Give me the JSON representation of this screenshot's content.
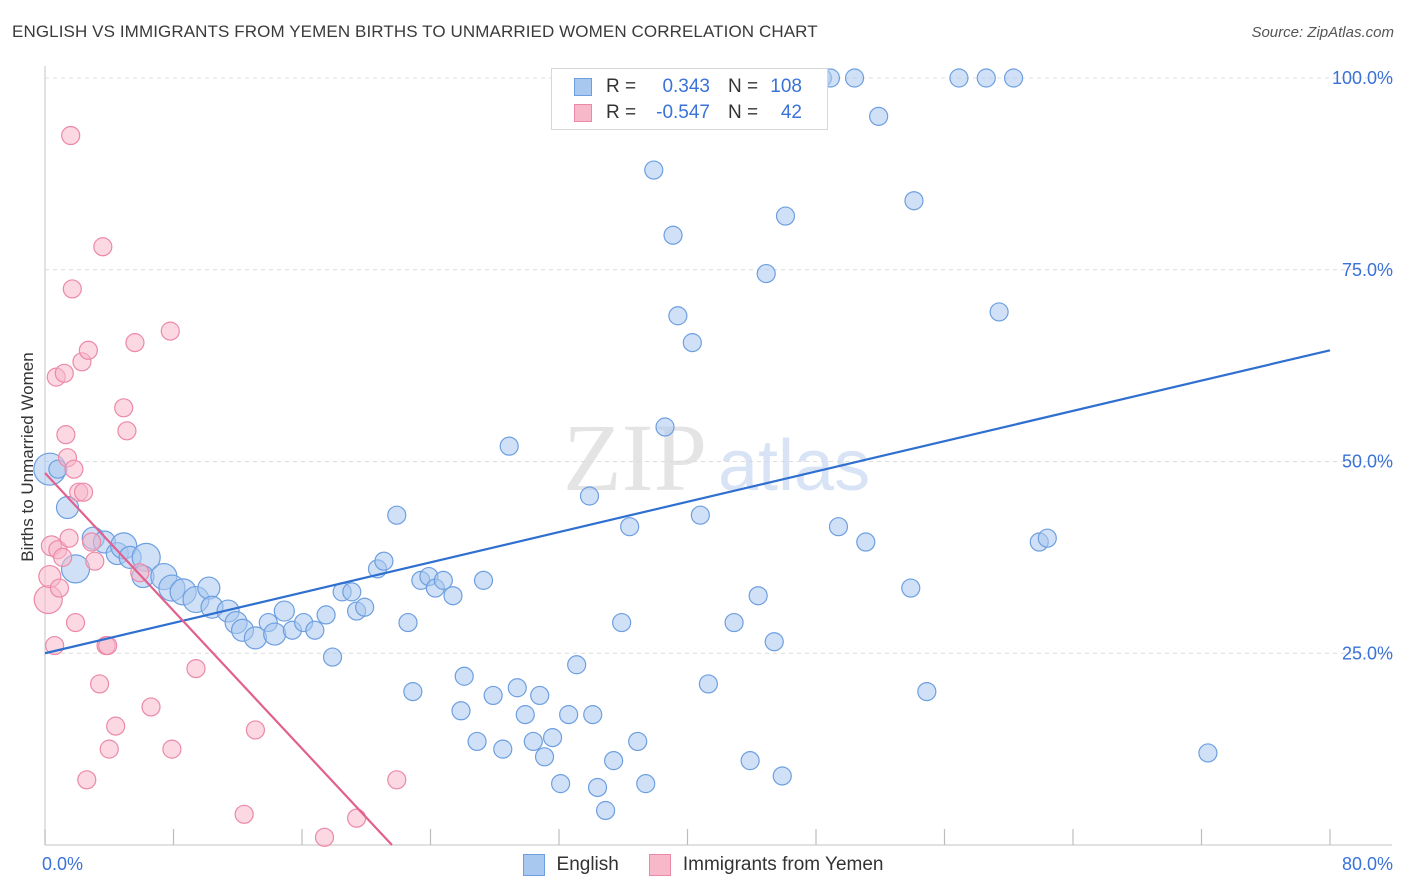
{
  "title": "ENGLISH VS IMMIGRANTS FROM YEMEN BIRTHS TO UNMARRIED WOMEN CORRELATION CHART",
  "source": "Source: ZipAtlas.com",
  "watermark": {
    "zip": "ZIP",
    "atlas": "atlas"
  },
  "legend": {
    "english": {
      "r_label": "R =",
      "r_value": "0.343",
      "n_label": "N =",
      "n_value": "108"
    },
    "yemen": {
      "r_label": "R =",
      "r_value": "-0.547",
      "n_label": "N =",
      "n_value": "42"
    }
  },
  "colors": {
    "english_fill": "#a9c8f0",
    "english_stroke": "#6d9fe0",
    "english_line": "#2f6fd0",
    "yemen_fill": "#f7b8ca",
    "yemen_stroke": "#ec89a8",
    "yemen_line": "#e2608e",
    "grid": "#dcdcdc",
    "axis_label": "#3a72d8"
  },
  "chart_data": {
    "type": "scatter",
    "title": "ENGLISH VS IMMIGRANTS FROM YEMEN BIRTHS TO UNMARRIED WOMEN CORRELATION CHART",
    "xlabel": "",
    "ylabel": "Births to Unmarried Women",
    "xlim": [
      0,
      80
    ],
    "ylim": [
      0,
      100
    ],
    "x_tick_labels": [
      {
        "value": 0,
        "label": "0.0%"
      },
      {
        "value": 80,
        "label": "80.0%"
      }
    ],
    "y_tick_labels": [
      {
        "value": 25,
        "label": "25.0%"
      },
      {
        "value": 50,
        "label": "50.0%"
      },
      {
        "value": 75,
        "label": "75.0%"
      },
      {
        "value": 100,
        "label": "100.0%"
      }
    ],
    "x_minor_ticks": [
      0,
      8,
      16,
      24,
      32,
      40,
      48,
      56,
      64,
      72,
      80
    ],
    "grid": true,
    "series": [
      {
        "name": "English",
        "r": 0.343,
        "n": 108,
        "trendline": [
          [
            0,
            25.0
          ],
          [
            80,
            64.5
          ]
        ],
        "points": [
          [
            0.3,
            49,
            16
          ],
          [
            0.8,
            49,
            9
          ],
          [
            1.4,
            44,
            11
          ],
          [
            1.9,
            36,
            14
          ],
          [
            3.0,
            40,
            11
          ],
          [
            3.7,
            39.5,
            11
          ],
          [
            4.5,
            38,
            11
          ],
          [
            4.9,
            39,
            13
          ],
          [
            5.3,
            37.5,
            11
          ],
          [
            6.3,
            37.5,
            14
          ],
          [
            6.1,
            35,
            11
          ],
          [
            7.4,
            35,
            13
          ],
          [
            7.9,
            33.5,
            13
          ],
          [
            8.6,
            33,
            13
          ],
          [
            9.4,
            32,
            13
          ],
          [
            10.2,
            33.5,
            11
          ],
          [
            10.4,
            31,
            11
          ],
          [
            11.4,
            30.5,
            11
          ],
          [
            11.9,
            29,
            11
          ],
          [
            12.3,
            28,
            11
          ],
          [
            13.1,
            27,
            11
          ],
          [
            13.9,
            29,
            9
          ],
          [
            14.3,
            27.5,
            11
          ],
          [
            14.9,
            30.5,
            10
          ],
          [
            15.4,
            28,
            9
          ],
          [
            16.1,
            29,
            9
          ],
          [
            16.8,
            28,
            9
          ],
          [
            17.5,
            30,
            9
          ],
          [
            17.9,
            24.5,
            9
          ],
          [
            18.5,
            33,
            9
          ],
          [
            19.1,
            33,
            9
          ],
          [
            19.4,
            30.5,
            9
          ],
          [
            19.9,
            31,
            9
          ],
          [
            20.7,
            36,
            9
          ],
          [
            21.1,
            37,
            9
          ],
          [
            21.9,
            43,
            9
          ],
          [
            22.6,
            29,
            9
          ],
          [
            22.9,
            20,
            9
          ],
          [
            23.4,
            34.5,
            9
          ],
          [
            23.9,
            35,
            9
          ],
          [
            24.3,
            33.5,
            9
          ],
          [
            24.8,
            34.5,
            9
          ],
          [
            25.4,
            32.5,
            9
          ],
          [
            25.9,
            17.5,
            9
          ],
          [
            26.1,
            22,
            9
          ],
          [
            26.9,
            13.5,
            9
          ],
          [
            27.3,
            34.5,
            9
          ],
          [
            27.9,
            19.5,
            9
          ],
          [
            28.5,
            12.5,
            9
          ],
          [
            28.9,
            52,
            9
          ],
          [
            29.4,
            20.5,
            9
          ],
          [
            29.9,
            17,
            9
          ],
          [
            30.4,
            13.5,
            9
          ],
          [
            30.8,
            19.5,
            9
          ],
          [
            31.1,
            11.5,
            9
          ],
          [
            31.6,
            14,
            9
          ],
          [
            32.1,
            8,
            9
          ],
          [
            32.6,
            17,
            9
          ],
          [
            33.1,
            23.5,
            9
          ],
          [
            33.9,
            45.5,
            9
          ],
          [
            34.1,
            17,
            9
          ],
          [
            34.4,
            7.5,
            9
          ],
          [
            34.9,
            4.5,
            9
          ],
          [
            35.4,
            11,
            9
          ],
          [
            35.9,
            29,
            9
          ],
          [
            36.4,
            41.5,
            9
          ],
          [
            36.9,
            13.5,
            9
          ],
          [
            37.4,
            8,
            9
          ],
          [
            37.9,
            88,
            9
          ],
          [
            38.6,
            54.5,
            9
          ],
          [
            39.1,
            79.5,
            9
          ],
          [
            39.4,
            69,
            9
          ],
          [
            40.3,
            65.5,
            9
          ],
          [
            40.8,
            43,
            9
          ],
          [
            41.3,
            21,
            9
          ],
          [
            42.9,
            29,
            9
          ],
          [
            43.4,
            100,
            9
          ],
          [
            43.9,
            11,
            9
          ],
          [
            44.4,
            32.5,
            9
          ],
          [
            44.9,
            74.5,
            9
          ],
          [
            45.4,
            26.5,
            9
          ],
          [
            45.9,
            9,
            9
          ],
          [
            46.1,
            82,
            9
          ],
          [
            48.4,
            100,
            9
          ],
          [
            48.9,
            100,
            9
          ],
          [
            49.4,
            41.5,
            9
          ],
          [
            50.4,
            100,
            9
          ],
          [
            51.1,
            39.5,
            9
          ],
          [
            51.9,
            95,
            9
          ],
          [
            53.9,
            33.5,
            9
          ],
          [
            54.1,
            84,
            9
          ],
          [
            54.9,
            20,
            9
          ],
          [
            56.9,
            100,
            9
          ],
          [
            58.6,
            100,
            9
          ],
          [
            59.4,
            69.5,
            9
          ],
          [
            60.3,
            100,
            9
          ],
          [
            61.9,
            39.5,
            9
          ],
          [
            62.4,
            40,
            9
          ],
          [
            72.4,
            12,
            9
          ]
        ]
      },
      {
        "name": "Immigrants from Yemen",
        "r": -0.547,
        "n": 42,
        "trendline": [
          [
            0,
            48.5
          ],
          [
            21.6,
            0
          ]
        ],
        "points": [
          [
            0.2,
            32,
            14
          ],
          [
            0.3,
            35,
            11
          ],
          [
            0.4,
            39,
            10
          ],
          [
            0.6,
            26,
            9
          ],
          [
            0.7,
            61,
            9
          ],
          [
            0.8,
            38.5,
            9
          ],
          [
            0.9,
            33.5,
            9
          ],
          [
            1.1,
            37.5,
            9
          ],
          [
            1.2,
            61.5,
            9
          ],
          [
            1.3,
            53.5,
            9
          ],
          [
            1.4,
            50.5,
            9
          ],
          [
            1.5,
            40,
            9
          ],
          [
            1.6,
            92.5,
            9
          ],
          [
            1.7,
            72.5,
            9
          ],
          [
            1.8,
            49,
            9
          ],
          [
            1.9,
            29,
            9
          ],
          [
            2.1,
            46,
            9
          ],
          [
            2.3,
            63,
            9
          ],
          [
            2.4,
            46,
            9
          ],
          [
            2.6,
            8.5,
            9
          ],
          [
            2.7,
            64.5,
            9
          ],
          [
            2.9,
            39.5,
            9
          ],
          [
            3.1,
            37,
            9
          ],
          [
            3.4,
            21,
            9
          ],
          [
            3.6,
            78,
            9
          ],
          [
            3.8,
            26,
            9
          ],
          [
            3.9,
            26,
            9
          ],
          [
            4.0,
            12.5,
            9
          ],
          [
            4.4,
            15.5,
            9
          ],
          [
            4.9,
            57,
            9
          ],
          [
            5.1,
            54,
            9
          ],
          [
            5.6,
            65.5,
            9
          ],
          [
            5.9,
            35.5,
            9
          ],
          [
            6.6,
            18,
            9
          ],
          [
            7.9,
            12.5,
            9
          ],
          [
            7.8,
            67,
            9
          ],
          [
            9.4,
            23,
            9
          ],
          [
            12.4,
            4,
            9
          ],
          [
            13.1,
            15,
            9
          ],
          [
            17.4,
            1,
            9
          ],
          [
            19.4,
            3.5,
            9
          ],
          [
            21.9,
            8.5,
            9
          ]
        ]
      }
    ]
  }
}
